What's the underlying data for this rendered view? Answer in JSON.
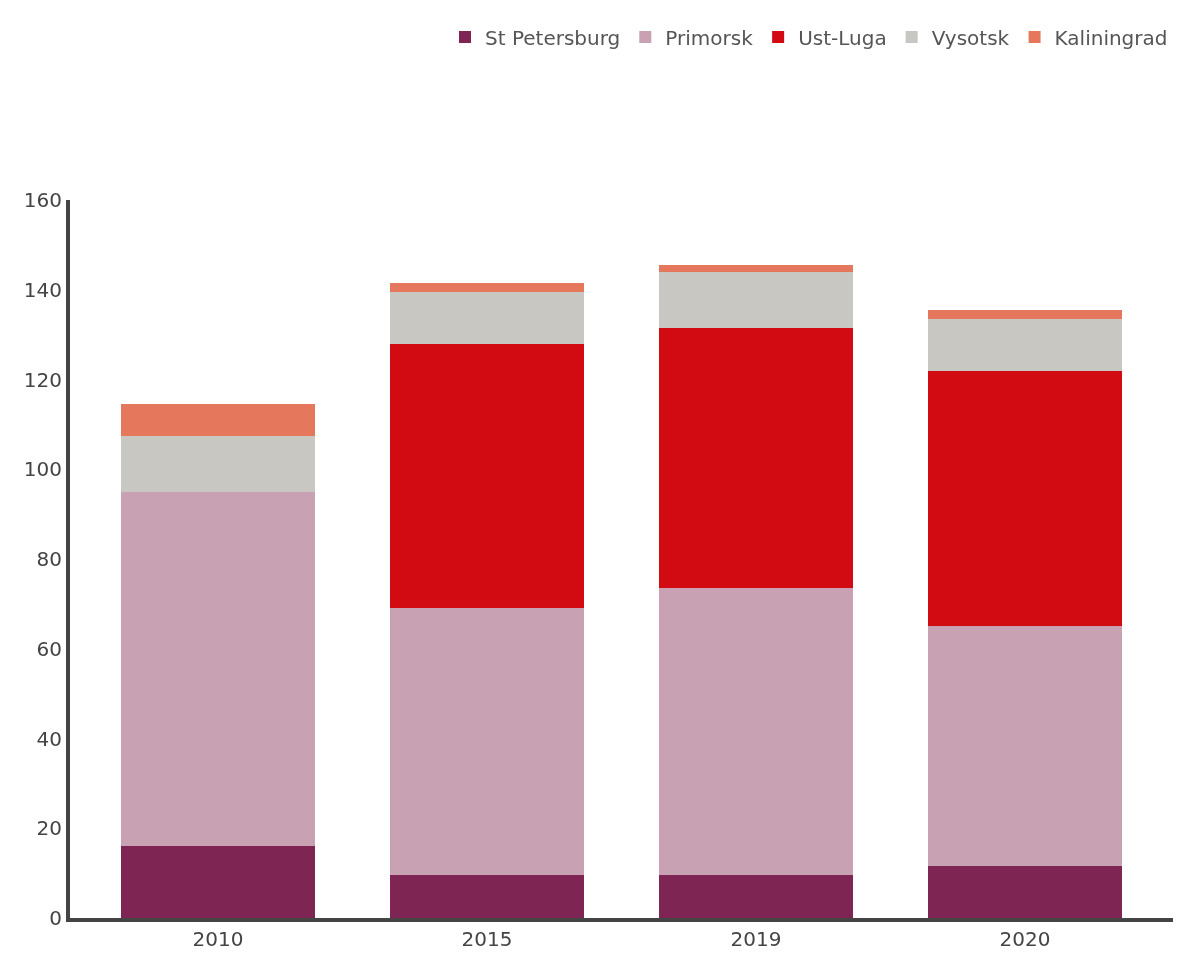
{
  "chart_data": {
    "type": "bar",
    "stacked": true,
    "categories": [
      "2010",
      "2015",
      "2019",
      "2020"
    ],
    "series": [
      {
        "name": "St Petersburg",
        "color": "#7f2553",
        "values": [
          16,
          9.5,
          9.5,
          11.5
        ]
      },
      {
        "name": "Primorsk",
        "color": "#c8a1b3",
        "values": [
          79,
          59.5,
          64,
          53.5
        ]
      },
      {
        "name": "Ust-Luga",
        "color": "#d20a11",
        "values": [
          0,
          59,
          58,
          57
        ]
      },
      {
        "name": "Vysotsk",
        "color": "#c9c7c2",
        "values": [
          12.5,
          11.5,
          12.5,
          11.5
        ]
      },
      {
        "name": "Kaliningrad",
        "color": "#e5785c",
        "values": [
          7,
          2,
          1.5,
          2
        ]
      }
    ],
    "ylim": [
      0,
      160
    ],
    "yticks": [
      0,
      20,
      40,
      60,
      80,
      100,
      120,
      140,
      160
    ],
    "legend": "top right"
  }
}
